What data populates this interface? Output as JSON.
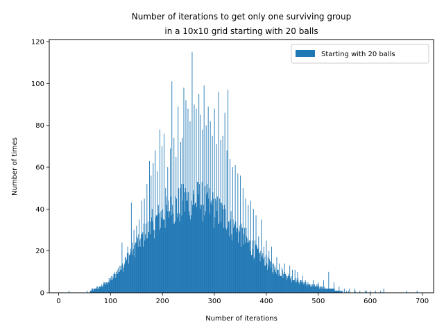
{
  "chart_data": {
    "type": "bar",
    "title_lines": [
      "Number of iterations to get only one surviving group",
      "in a 10x10 grid starting with 20 balls"
    ],
    "xlabel": "Number of iterations",
    "ylabel": "Number of times",
    "xlim": [
      -18,
      722
    ],
    "ylim": [
      0,
      121
    ],
    "xticks": [
      0,
      100,
      200,
      300,
      400,
      500,
      600,
      700
    ],
    "yticks": [
      0,
      20,
      40,
      60,
      80,
      100,
      120
    ],
    "grid": false,
    "legend_position": "top-right",
    "series": [
      {
        "name": "Starting with 20 balls",
        "color": "#1f77b4",
        "profile": [
          [
            60,
            1
          ],
          [
            80,
            3
          ],
          [
            100,
            6
          ],
          [
            120,
            12
          ],
          [
            140,
            20
          ],
          [
            160,
            27
          ],
          [
            180,
            33
          ],
          [
            200,
            38
          ],
          [
            220,
            41
          ],
          [
            240,
            44
          ],
          [
            260,
            46
          ],
          [
            280,
            45
          ],
          [
            300,
            41
          ],
          [
            320,
            37
          ],
          [
            340,
            31
          ],
          [
            360,
            26
          ],
          [
            380,
            20
          ],
          [
            400,
            15
          ],
          [
            420,
            11
          ],
          [
            440,
            8
          ],
          [
            460,
            6
          ],
          [
            480,
            4
          ],
          [
            500,
            3
          ],
          [
            520,
            2
          ],
          [
            540,
            1
          ],
          [
            560,
            0.5
          ],
          [
            600,
            0.2
          ]
        ],
        "spikes": [
          [
            20,
            1
          ],
          [
            55,
            1
          ],
          [
            78,
            2
          ],
          [
            92,
            5
          ],
          [
            100,
            7
          ],
          [
            108,
            10
          ],
          [
            115,
            12
          ],
          [
            120,
            13
          ],
          [
            122,
            24
          ],
          [
            128,
            17
          ],
          [
            133,
            22
          ],
          [
            137,
            18
          ],
          [
            140,
            43
          ],
          [
            145,
            30
          ],
          [
            150,
            32
          ],
          [
            155,
            35
          ],
          [
            160,
            44
          ],
          [
            165,
            45
          ],
          [
            170,
            52
          ],
          [
            175,
            63
          ],
          [
            178,
            56
          ],
          [
            182,
            62
          ],
          [
            186,
            68
          ],
          [
            190,
            58
          ],
          [
            195,
            78
          ],
          [
            199,
            70
          ],
          [
            203,
            76
          ],
          [
            206,
            50
          ],
          [
            210,
            60
          ],
          [
            215,
            69
          ],
          [
            218,
            101
          ],
          [
            222,
            74
          ],
          [
            226,
            65
          ],
          [
            230,
            89
          ],
          [
            235,
            72
          ],
          [
            238,
            74
          ],
          [
            241,
            98
          ],
          [
            245,
            92
          ],
          [
            249,
            88
          ],
          [
            253,
            82
          ],
          [
            257,
            115
          ],
          [
            261,
            90
          ],
          [
            265,
            88
          ],
          [
            270,
            95
          ],
          [
            273,
            85
          ],
          [
            277,
            78
          ],
          [
            280,
            99
          ],
          [
            284,
            80
          ],
          [
            288,
            89
          ],
          [
            292,
            82
          ],
          [
            296,
            75
          ],
          [
            300,
            88
          ],
          [
            304,
            71
          ],
          [
            308,
            96
          ],
          [
            312,
            73
          ],
          [
            316,
            75
          ],
          [
            320,
            86
          ],
          [
            324,
            68
          ],
          [
            326,
            97
          ],
          [
            330,
            64
          ],
          [
            335,
            60
          ],
          [
            340,
            61
          ],
          [
            345,
            57
          ],
          [
            350,
            56
          ],
          [
            355,
            50
          ],
          [
            360,
            45
          ],
          [
            365,
            42
          ],
          [
            370,
            44
          ],
          [
            375,
            40
          ],
          [
            380,
            37
          ],
          [
            385,
            27
          ],
          [
            390,
            35
          ],
          [
            395,
            22
          ],
          [
            400,
            25
          ],
          [
            405,
            20
          ],
          [
            410,
            22
          ],
          [
            420,
            17
          ],
          [
            425,
            14
          ],
          [
            430,
            12
          ],
          [
            435,
            14
          ],
          [
            440,
            8
          ],
          [
            445,
            13
          ],
          [
            450,
            11
          ],
          [
            455,
            11
          ],
          [
            460,
            10
          ],
          [
            470,
            8
          ],
          [
            475,
            6
          ],
          [
            480,
            5
          ],
          [
            490,
            6
          ],
          [
            500,
            5
          ],
          [
            510,
            6
          ],
          [
            520,
            10
          ],
          [
            530,
            5
          ],
          [
            540,
            3
          ],
          [
            550,
            2
          ],
          [
            560,
            2
          ],
          [
            570,
            2
          ],
          [
            580,
            1
          ],
          [
            590,
            1
          ],
          [
            600,
            1
          ],
          [
            610,
            1
          ],
          [
            620,
            1
          ],
          [
            626,
            2
          ],
          [
            670,
            1
          ],
          [
            690,
            1
          ]
        ]
      }
    ]
  }
}
